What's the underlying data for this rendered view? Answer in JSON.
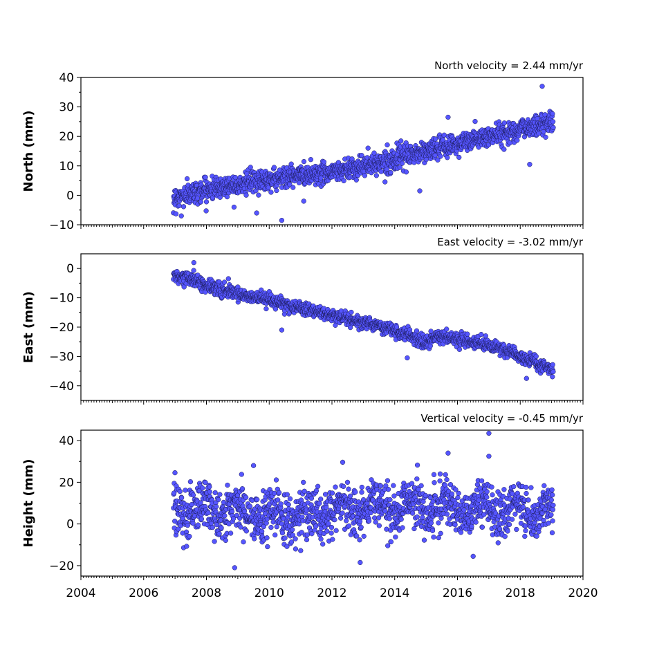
{
  "chart_data": [
    {
      "type": "scatter",
      "title": "North velocity = 2.44 mm/yr",
      "ylabel": "North (mm)",
      "xlim": [
        2004,
        2020
      ],
      "ylim": [
        -10,
        40
      ],
      "yticks": [
        -10,
        0,
        10,
        20,
        30,
        40
      ],
      "xticks": [],
      "data_range": [
        2006.95,
        2019.05
      ],
      "marker_color": "#5555ff",
      "trend": [
        [
          2006.95,
          -1.0
        ],
        [
          2008.0,
          2.0
        ],
        [
          2010.0,
          5.5
        ],
        [
          2012.0,
          8.0
        ],
        [
          2013.5,
          11.0
        ],
        [
          2015.0,
          15.0
        ],
        [
          2017.0,
          20.0
        ],
        [
          2019.0,
          25.0
        ]
      ],
      "noise_sd": 1.8,
      "outliers": [
        [
          2018.7,
          37.0
        ],
        [
          2010.4,
          -8.5
        ],
        [
          2007.2,
          -7.0
        ],
        [
          2015.7,
          26.5
        ],
        [
          2018.3,
          10.5
        ],
        [
          2009.6,
          -6.0
        ],
        [
          2011.1,
          -2.0
        ],
        [
          2014.8,
          1.5
        ]
      ]
    },
    {
      "type": "scatter",
      "title": "East velocity = -3.02 mm/yr",
      "ylabel": "East (mm)",
      "xlim": [
        2004,
        2020
      ],
      "ylim": [
        -45,
        5
      ],
      "yticks": [
        -40,
        -30,
        -20,
        -10,
        0
      ],
      "xticks": [],
      "data_range": [
        2006.95,
        2019.05
      ],
      "marker_color": "#5555ff",
      "trend": [
        [
          2006.95,
          -2.5
        ],
        [
          2007.5,
          -3.5
        ],
        [
          2008.0,
          -6.0
        ],
        [
          2010.0,
          -11.0
        ],
        [
          2012.0,
          -16.0
        ],
        [
          2014.0,
          -21.0
        ],
        [
          2015.0,
          -25.5
        ],
        [
          2015.3,
          -23.0
        ],
        [
          2017.0,
          -26.0
        ],
        [
          2018.0,
          -30.0
        ],
        [
          2019.0,
          -34.5
        ]
      ],
      "noise_sd": 1.1,
      "outliers": [
        [
          2007.6,
          2.0
        ],
        [
          2010.4,
          -21.0
        ],
        [
          2014.4,
          -30.5
        ],
        [
          2018.2,
          -37.5
        ],
        [
          2016.9,
          -23.0
        ],
        [
          2008.7,
          -3.5
        ]
      ]
    },
    {
      "type": "scatter",
      "title": "Vertical velocity = -0.45 mm/yr",
      "ylabel": "Height (mm)",
      "xlim": [
        2004,
        2020
      ],
      "ylim": [
        -25,
        45
      ],
      "yticks": [
        -20,
        0,
        20,
        40
      ],
      "xticks": [
        2004,
        2006,
        2008,
        2010,
        2012,
        2014,
        2016,
        2018,
        2020
      ],
      "data_range": [
        2006.95,
        2019.05
      ],
      "marker_color": "#5555ff",
      "trend": [
        [
          2006.95,
          7.0
        ],
        [
          2008.0,
          8.0
        ],
        [
          2009.0,
          6.0
        ],
        [
          2011.0,
          3.0
        ],
        [
          2012.0,
          6.0
        ],
        [
          2014.0,
          8.0
        ],
        [
          2016.0,
          8.0
        ],
        [
          2017.0,
          6.0
        ],
        [
          2018.0,
          6.0
        ],
        [
          2019.0,
          7.0
        ]
      ],
      "noise_sd": 5.8,
      "outliers": [
        [
          2017.0,
          43.5
        ],
        [
          2015.7,
          34.0
        ],
        [
          2008.9,
          -21.0
        ],
        [
          2012.9,
          -18.5
        ],
        [
          2016.5,
          -15.5
        ],
        [
          2017.0,
          32.5
        ],
        [
          2009.5,
          28.0
        ]
      ]
    }
  ]
}
